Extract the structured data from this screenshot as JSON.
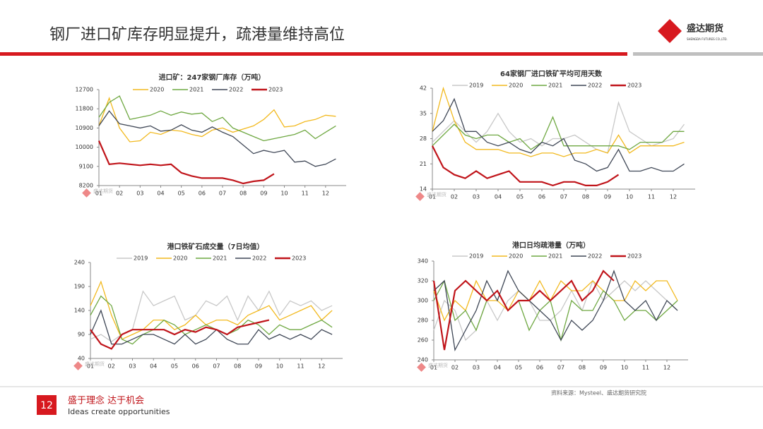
{
  "header": {
    "title": "钢厂进口矿库存明显提升，疏港量维持高位",
    "logo": "盛达期货",
    "logo_en": "SHENGDA FUTURES CO.,LTD."
  },
  "watermark": "盛达期货",
  "chart_data": [
    {
      "type": "line",
      "title": "进口矿：247家钢厂库存（万吨）",
      "x": [
        1,
        1.5,
        2,
        2.5,
        3,
        3.5,
        4,
        4.5,
        5,
        5.5,
        6,
        6.5,
        7,
        7.5,
        8,
        8.5,
        9,
        9.5,
        10,
        10.5,
        11,
        11.5,
        12,
        12.5
      ],
      "xlim": [
        1,
        13
      ],
      "xticks": [
        {
          "value": 1,
          "label": "01"
        },
        {
          "value": 2,
          "label": "02"
        },
        {
          "value": 3,
          "label": "03"
        },
        {
          "value": 4,
          "label": "04"
        },
        {
          "value": 5,
          "label": "05"
        },
        {
          "value": 6,
          "label": "06"
        },
        {
          "value": 7,
          "label": "07"
        },
        {
          "value": 8,
          "label": "08"
        },
        {
          "value": 9,
          "label": "09"
        },
        {
          "value": 10,
          "label": "10"
        },
        {
          "value": 11,
          "label": "11"
        },
        {
          "value": 12,
          "label": "12"
        }
      ],
      "ylim": [
        8200,
        12700
      ],
      "yticks": [
        8200,
        9100,
        10000,
        10900,
        11800,
        12700
      ],
      "series": [
        {
          "name": "2020",
          "color": "#f2b91e",
          "values": [
            11000,
            12300,
            10900,
            10250,
            10300,
            10700,
            10600,
            10800,
            10750,
            10600,
            10500,
            10800,
            10900,
            10700,
            10850,
            11000,
            11300,
            11750,
            10950,
            11000,
            11200,
            11300,
            11500,
            11450
          ]
        },
        {
          "name": "2021",
          "color": "#6fa842",
          "values": [
            11400,
            12100,
            12400,
            11300,
            11400,
            11500,
            11700,
            11500,
            11650,
            11550,
            11600,
            11200,
            11400,
            10900,
            10700,
            10500,
            10300,
            10400,
            10500,
            10600,
            10800,
            10400,
            10700,
            11000
          ]
        },
        {
          "name": "2022",
          "color": "#3f4756",
          "values": [
            11000,
            11700,
            11100,
            11000,
            10900,
            11000,
            10750,
            10800,
            11050,
            10800,
            10700,
            10950,
            10700,
            10500,
            10100,
            9700,
            9850,
            9750,
            9850,
            9300,
            9350,
            9100,
            9200,
            9450
          ]
        },
        {
          "name": "2023",
          "color": "#c0141a",
          "values": [
            10300,
            9200,
            9250,
            9200,
            9150,
            9200,
            9150,
            9200,
            8800,
            8650,
            8550,
            8550,
            8550,
            8450,
            8300,
            8400,
            8450,
            8750,
            null,
            null,
            null,
            null,
            null,
            null
          ]
        }
      ]
    },
    {
      "type": "line",
      "title": "64家钢厂进口铁矿平均可用天数",
      "x": [
        1,
        1.5,
        2,
        2.5,
        3,
        3.5,
        4,
        4.5,
        5,
        5.5,
        6,
        6.5,
        7,
        7.5,
        8,
        8.5,
        9,
        9.5,
        10,
        10.5,
        11,
        11.5,
        12,
        12.5
      ],
      "xlim": [
        1,
        13
      ],
      "xticks": [
        {
          "value": 1,
          "label": "01"
        },
        {
          "value": 2,
          "label": "02"
        },
        {
          "value": 3,
          "label": "03"
        },
        {
          "value": 4,
          "label": "04"
        },
        {
          "value": 5,
          "label": "05"
        },
        {
          "value": 6,
          "label": "06"
        },
        {
          "value": 7,
          "label": "07"
        },
        {
          "value": 8,
          "label": "08"
        },
        {
          "value": 9,
          "label": "09"
        },
        {
          "value": 10,
          "label": "10"
        },
        {
          "value": 11,
          "label": "11"
        },
        {
          "value": 12,
          "label": "12"
        }
      ],
      "ylim": [
        14,
        42
      ],
      "yticks": [
        14,
        21,
        28,
        35,
        42
      ],
      "series": [
        {
          "name": "2019",
          "color": "#c8c8c8",
          "values": [
            27,
            30,
            33,
            30,
            27,
            30,
            35,
            30,
            27,
            28,
            26,
            28,
            28,
            29,
            27,
            25,
            24,
            38,
            30,
            28,
            26,
            27,
            28,
            32
          ]
        },
        {
          "name": "2020",
          "color": "#f2b91e",
          "values": [
            30,
            42,
            33,
            27,
            25,
            25,
            25,
            24,
            24,
            23,
            24,
            24,
            23,
            24,
            24,
            25,
            24,
            29,
            24,
            26,
            26,
            26,
            26,
            27
          ]
        },
        {
          "name": "2021",
          "color": "#6fa842",
          "values": [
            26,
            29,
            32,
            29,
            28,
            29,
            29,
            27,
            28,
            25,
            27,
            34,
            26,
            26,
            26,
            26,
            26,
            26,
            25,
            27,
            27,
            27,
            30,
            30
          ]
        },
        {
          "name": "2022",
          "color": "#3f4756",
          "values": [
            30,
            33,
            39,
            30,
            30,
            27,
            26,
            27,
            25,
            24,
            27,
            26,
            28,
            22,
            21,
            19,
            20,
            25,
            19,
            19,
            20,
            19,
            19,
            21
          ]
        },
        {
          "name": "2023",
          "color": "#c0141a",
          "values": [
            26,
            20,
            18,
            17,
            19,
            17,
            18,
            19,
            16,
            16,
            16,
            15,
            16,
            16,
            15,
            15,
            16,
            18,
            null,
            null,
            null,
            null,
            null,
            null
          ]
        }
      ]
    },
    {
      "type": "line",
      "title": "港口铁矿石成交量（7日均值）",
      "x": [
        1,
        1.5,
        2,
        2.5,
        3,
        3.5,
        4,
        4.5,
        5,
        5.5,
        6,
        6.5,
        7,
        7.5,
        8,
        8.5,
        9,
        9.5,
        10,
        10.5,
        11,
        11.5,
        12,
        12.5
      ],
      "xlim": [
        1,
        13
      ],
      "xticks": [
        {
          "value": 1,
          "label": "01"
        },
        {
          "value": 2,
          "label": "02"
        },
        {
          "value": 3,
          "label": "03"
        },
        {
          "value": 4,
          "label": "04"
        },
        {
          "value": 5,
          "label": "05"
        },
        {
          "value": 6,
          "label": "06"
        },
        {
          "value": 7,
          "label": "07"
        },
        {
          "value": 8,
          "label": "08"
        },
        {
          "value": 9,
          "label": "09"
        },
        {
          "value": 10,
          "label": "10"
        },
        {
          "value": 11,
          "label": "11"
        },
        {
          "value": 12,
          "label": "12"
        }
      ],
      "ylim": [
        40,
        240
      ],
      "yticks": [
        40,
        90,
        140,
        190,
        240
      ],
      "series": [
        {
          "name": "2019",
          "color": "#c8c8c8",
          "values": [
            80,
            90,
            75,
            90,
            100,
            180,
            150,
            160,
            170,
            120,
            130,
            160,
            150,
            170,
            120,
            170,
            140,
            180,
            130,
            160,
            150,
            160,
            140,
            150
          ]
        },
        {
          "name": "2020",
          "color": "#f2b91e",
          "values": [
            150,
            200,
            130,
            80,
            90,
            100,
            120,
            120,
            100,
            110,
            130,
            110,
            120,
            120,
            110,
            130,
            140,
            150,
            120,
            130,
            140,
            150,
            120,
            140
          ]
        },
        {
          "name": "2021",
          "color": "#6fa842",
          "values": [
            130,
            170,
            150,
            80,
            70,
            90,
            100,
            120,
            110,
            90,
            100,
            110,
            100,
            90,
            100,
            120,
            110,
            90,
            110,
            100,
            100,
            110,
            120,
            105
          ]
        },
        {
          "name": "2022",
          "color": "#3f4756",
          "values": [
            90,
            140,
            70,
            70,
            80,
            90,
            90,
            80,
            70,
            90,
            70,
            80,
            100,
            80,
            70,
            70,
            100,
            80,
            90,
            80,
            90,
            80,
            100,
            90
          ]
        },
        {
          "name": "2023",
          "color": "#c0141a",
          "values": [
            100,
            70,
            60,
            90,
            100,
            100,
            100,
            100,
            90,
            100,
            95,
            105,
            100,
            90,
            105,
            110,
            115,
            120,
            null,
            null,
            null,
            null,
            null,
            null
          ]
        }
      ]
    },
    {
      "type": "line",
      "title": "港口日均疏港量（万吨）",
      "x": [
        1,
        1.5,
        2,
        2.5,
        3,
        3.5,
        4,
        4.5,
        5,
        5.5,
        6,
        6.5,
        7,
        7.5,
        8,
        8.5,
        9,
        9.5,
        10,
        10.5,
        11,
        11.5,
        12,
        12.5
      ],
      "xlim": [
        1,
        13
      ],
      "xticks": [
        {
          "value": 1,
          "label": "01"
        },
        {
          "value": 2,
          "label": "02"
        },
        {
          "value": 3,
          "label": "03"
        },
        {
          "value": 4,
          "label": "04"
        },
        {
          "value": 5,
          "label": "05"
        },
        {
          "value": 6,
          "label": "06"
        },
        {
          "value": 7,
          "label": "07"
        },
        {
          "value": 8,
          "label": "08"
        },
        {
          "value": 9,
          "label": "09"
        },
        {
          "value": 10,
          "label": "10"
        },
        {
          "value": 11,
          "label": "11"
        },
        {
          "value": 12,
          "label": "12"
        }
      ],
      "ylim": [
        240,
        340
      ],
      "yticks": [
        240,
        260,
        280,
        300,
        320,
        340
      ],
      "series": [
        {
          "name": "2019",
          "color": "#c8c8c8",
          "values": [
            270,
            300,
            290,
            260,
            270,
            300,
            280,
            300,
            310,
            300,
            280,
            280,
            290,
            310,
            290,
            320,
            300,
            310,
            320,
            310,
            320,
            310,
            300,
            290
          ]
        },
        {
          "name": "2020",
          "color": "#f2b91e",
          "values": [
            310,
            280,
            300,
            290,
            320,
            300,
            300,
            290,
            310,
            300,
            320,
            300,
            320,
            310,
            310,
            320,
            310,
            300,
            300,
            320,
            310,
            320,
            320,
            300
          ]
        },
        {
          "name": "2021",
          "color": "#6fa842",
          "values": [
            300,
            320,
            280,
            290,
            270,
            300,
            310,
            290,
            300,
            270,
            290,
            300,
            260,
            300,
            290,
            290,
            310,
            300,
            280,
            290,
            290,
            280,
            290,
            300
          ]
        },
        {
          "name": "2022",
          "color": "#3f4756",
          "values": [
            310,
            320,
            250,
            270,
            290,
            320,
            300,
            330,
            310,
            300,
            290,
            280,
            260,
            280,
            270,
            280,
            300,
            330,
            300,
            290,
            300,
            280,
            300,
            290
          ]
        },
        {
          "name": "2023",
          "color": "#c0141a",
          "values": [
            320,
            250,
            310,
            320,
            310,
            300,
            310,
            290,
            300,
            300,
            310,
            300,
            310,
            320,
            300,
            310,
            330,
            320,
            null,
            null,
            null,
            null,
            null,
            null
          ]
        }
      ]
    }
  ],
  "footer": {
    "page": "12",
    "slogan": "盛于理念 达于机会",
    "slogan_en": "Ideas create opportunities",
    "source": "资料来源：Mysteel、盛达期货研究院"
  }
}
